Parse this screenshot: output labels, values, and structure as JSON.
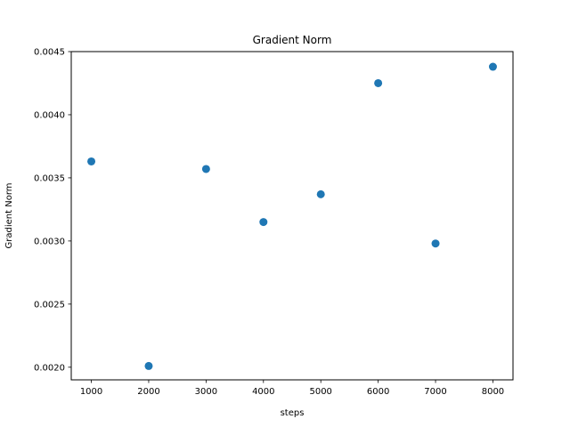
{
  "chart_data": {
    "type": "scatter",
    "title": "Gradient Norm",
    "xlabel": "steps",
    "ylabel": "Gradient Norm",
    "xlim": [
      650,
      8350
    ],
    "ylim": [
      0.0019,
      0.0045
    ],
    "xticks": [
      1000,
      2000,
      3000,
      4000,
      5000,
      6000,
      7000,
      8000
    ],
    "xtick_labels": [
      "1000",
      "2000",
      "3000",
      "4000",
      "5000",
      "6000",
      "7000",
      "8000"
    ],
    "yticks": [
      0.002,
      0.0025,
      0.003,
      0.0035,
      0.004,
      0.0045
    ],
    "ytick_labels": [
      "0.0020",
      "0.0025",
      "0.0030",
      "0.0035",
      "0.0040",
      "0.0045"
    ],
    "grid": false,
    "series": [
      {
        "color": "#1f77b4",
        "x": [
          1000,
          2000,
          3000,
          4000,
          5000,
          6000,
          7000,
          8000
        ],
        "y": [
          0.00363,
          0.00201,
          0.00357,
          0.00315,
          0.00337,
          0.00425,
          0.00298,
          0.00438
        ]
      }
    ]
  }
}
